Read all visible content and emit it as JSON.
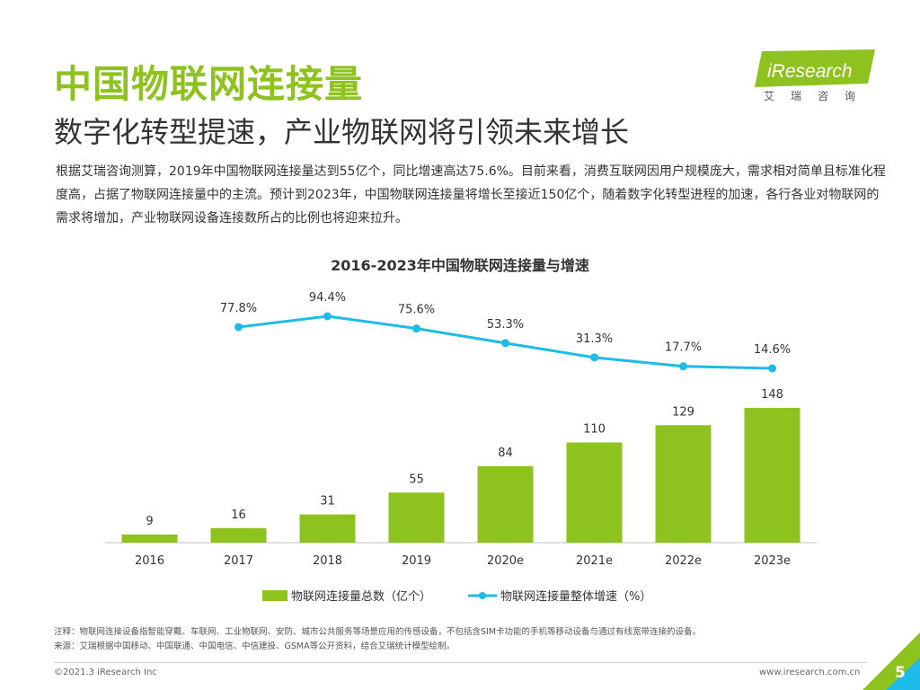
{
  "slide": {
    "title": "中国物联网连接量",
    "subtitle": "数字化转型提速，产业物联网将引领未来增长",
    "description": "根据艾瑞咨询测算，2019年中国物联网连接量达到55亿个，同比增速高达75.6%。目前来看，消费互联网因用户规模庞大，需求相对简单且标准化程度高，占据了物联网连接量中的主流。预计到2023年，中国物联网连接量将增长至接近150亿个，随着数字化转型进程的加速，各行各业对物联网的需求将增加，产业物联网设备连接数所占的比例也将迎来拉升。",
    "note": "注释：物联网连接设备指智能穿戴、车联网、工业物联网、安防、城市公共服务等场景应用的传感设备，不包括含SIM卡功能的手机等移动设备与通过有线宽带连接的设备。",
    "source": "来源：艾瑞根据中国移动、中国联通、中国电信、中信建投、GSMA等公开资料，结合艾瑞统计模型绘制。",
    "copyright": "©2021.3 iResearch Inc",
    "website": "www.iresearch.com.cn",
    "page_number": "5"
  },
  "logo": {
    "brand": "iResearch",
    "brand_cn": "艾瑞咨询"
  },
  "colors": {
    "accent": "#8dc21f",
    "line": "#1ebbe8",
    "text": "#333333"
  },
  "chart_data": {
    "type": "bar",
    "title": "2016-2023年中国物联网连接量与增速",
    "categories": [
      "2016",
      "2017",
      "2018",
      "2019",
      "2020e",
      "2021e",
      "2022e",
      "2023e"
    ],
    "series": [
      {
        "name": "物联网连接量总数（亿个）",
        "type": "bar",
        "values": [
          9,
          16,
          31,
          55,
          84,
          110,
          129,
          148
        ]
      },
      {
        "name": "物联网连接量整体增速（%）",
        "type": "line",
        "values": [
          null,
          77.8,
          94.4,
          75.6,
          53.3,
          31.3,
          17.7,
          14.6
        ],
        "labels": [
          "",
          "77.8%",
          "94.4%",
          "75.6%",
          "53.3%",
          "31.3%",
          "17.7%",
          "14.6%"
        ]
      }
    ],
    "legend_position": "bottom"
  }
}
